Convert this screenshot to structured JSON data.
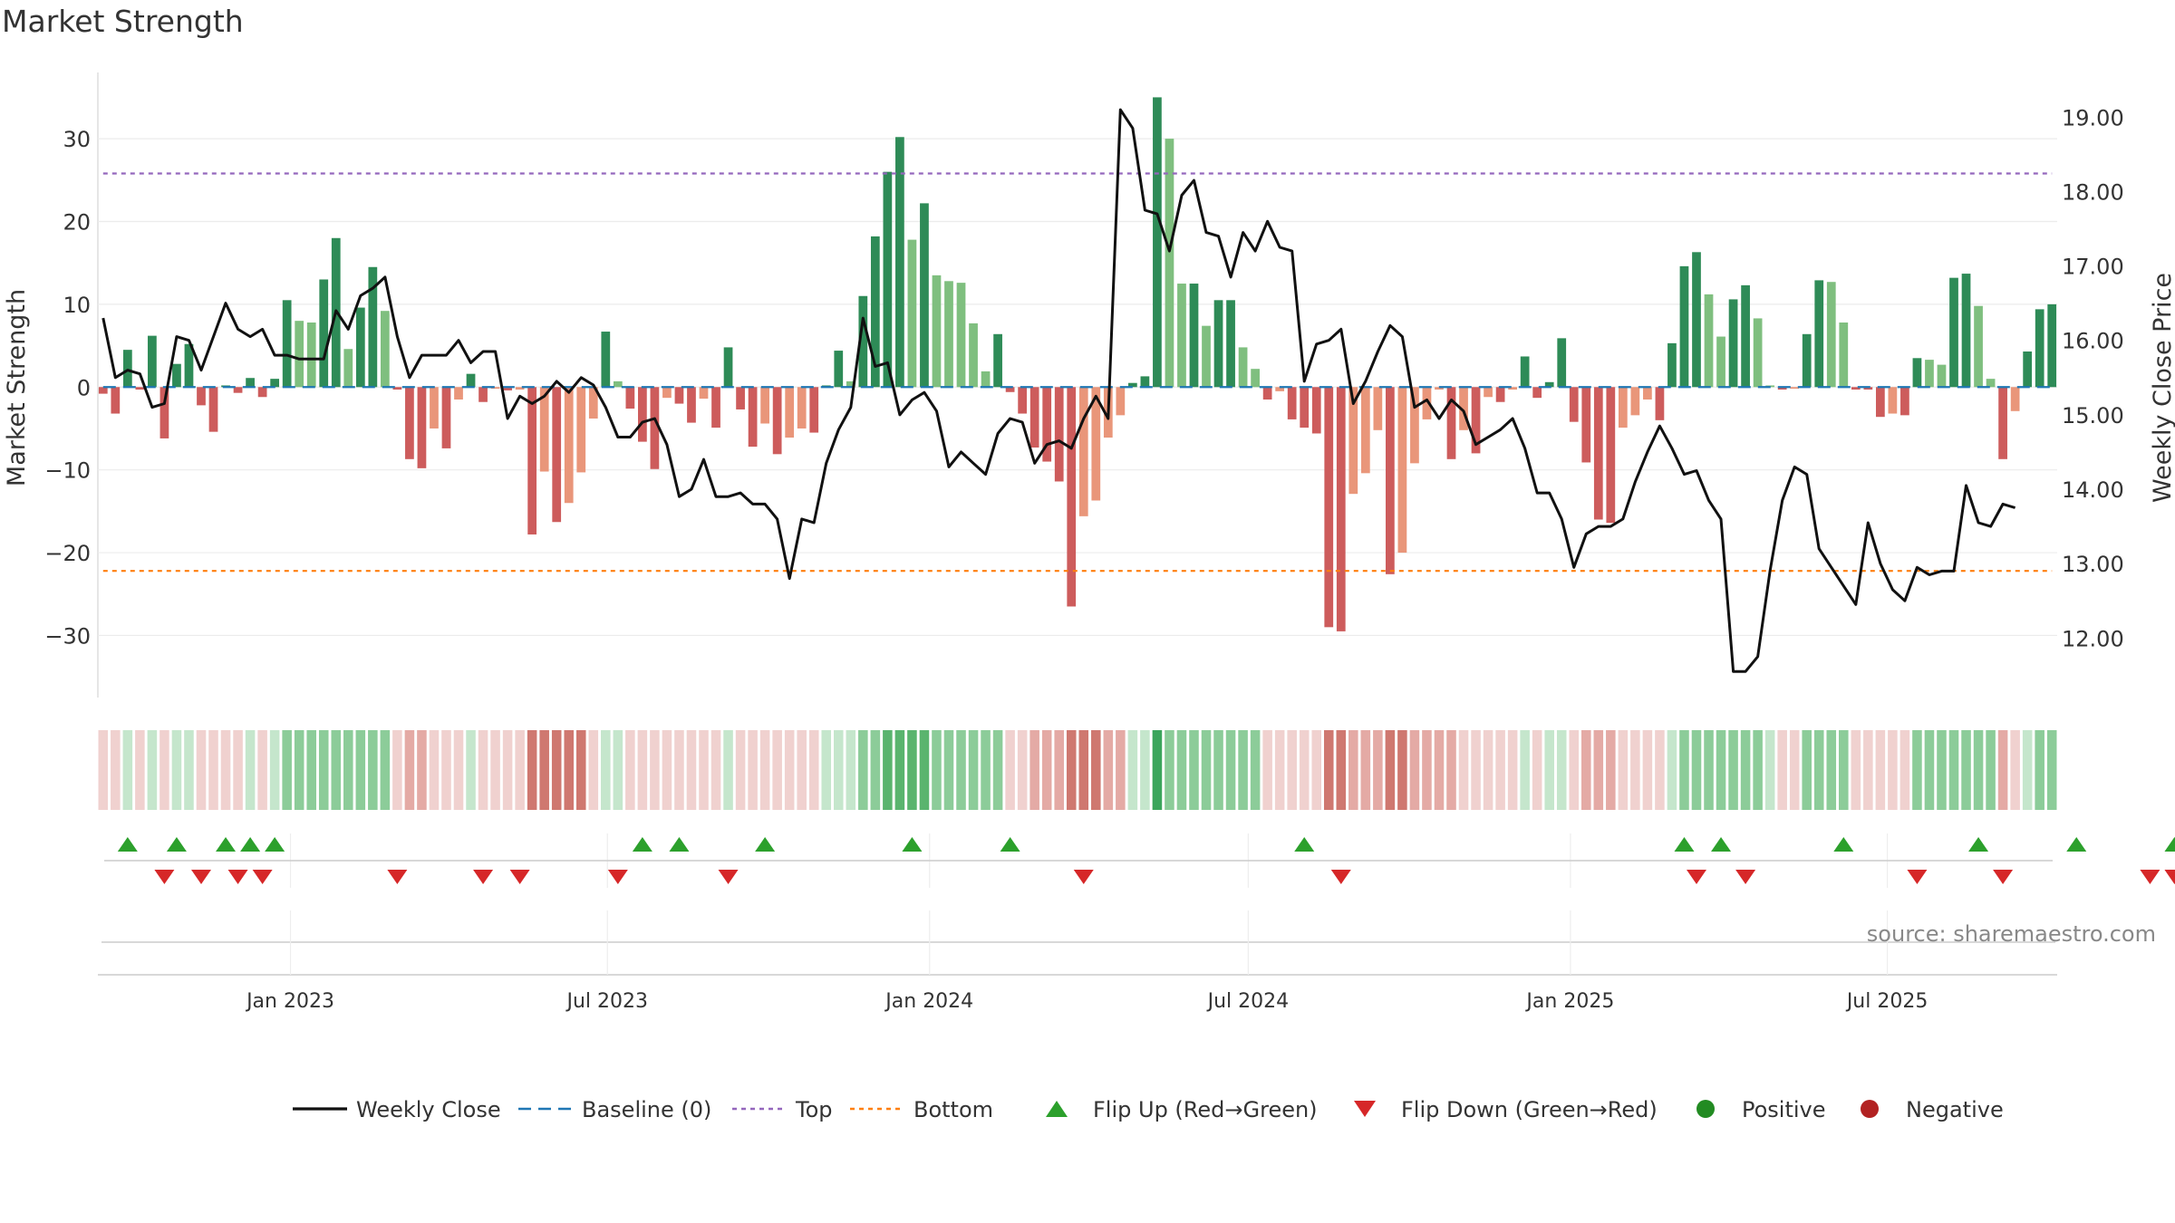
{
  "page": {
    "title": "Market Strength"
  },
  "chart_data": {
    "type": "bar",
    "title": "Market Strength",
    "ylabel": "Market Strength",
    "ylabel_right": "Weekly Close Price",
    "ylim": [
      -37.5,
      38
    ],
    "ylim_right": [
      11.2,
      19.6
    ],
    "y_ticks": [
      30,
      20,
      10,
      0,
      -10,
      -20,
      -30
    ],
    "y_tick_labels": [
      "30",
      "20",
      "10",
      "0",
      "−10",
      "−20",
      "−30"
    ],
    "y_right_ticks": [
      19.0,
      18.0,
      17.0,
      16.0,
      15.0,
      14.0,
      13.0,
      12.0
    ],
    "y_right_tick_labels": [
      "19.00",
      "18.00",
      "17.00",
      "16.00",
      "15.00",
      "14.00",
      "13.00",
      "12.00"
    ],
    "x_start": "2022-09-16",
    "x_step_days": 7,
    "x_ticks": [
      "2023-01-01",
      "2023-07-01",
      "2024-01-01",
      "2024-07-01",
      "2025-01-01",
      "2025-07-01"
    ],
    "x_tick_labels": [
      "Jan 2023",
      "Jul 2023",
      "Jan 2024",
      "Jul 2024",
      "Jan 2025",
      "Jul 2025"
    ],
    "top_line": 25.8,
    "bottom_line": -22.2,
    "strength": [
      -0.8,
      -3.2,
      4.5,
      -0.3,
      6.2,
      -6.2,
      2.8,
      5.2,
      -2.2,
      -5.4,
      0.2,
      -0.7,
      1.1,
      -1.2,
      1,
      10.5,
      8,
      7.8,
      13,
      18,
      4.6,
      9.6,
      14.5,
      9.2,
      -0.3,
      -8.7,
      -9.8,
      -5,
      -7.4,
      -1.5,
      1.6,
      -1.8,
      -0.2,
      -0.4,
      -0.3,
      -17.8,
      -10.2,
      -16.3,
      -14,
      -10.3,
      -3.8,
      6.7,
      0.7,
      -2.6,
      -6.6,
      -9.9,
      -1.3,
      -2,
      -4.3,
      -1.4,
      -4.9,
      4.8,
      -2.7,
      -7.2,
      -4.4,
      -8.1,
      -6.1,
      -5,
      -5.5,
      0.2,
      4.4,
      0.7,
      11,
      18.2,
      26,
      30.2,
      17.8,
      22.2,
      13.5,
      12.8,
      12.6,
      7.7,
      1.9,
      6.4,
      -0.6,
      -3.2,
      -7.3,
      -9,
      -11.4,
      -26.5,
      -15.6,
      -13.7,
      -6.1,
      -3.4,
      0.5,
      1.3,
      35,
      30,
      12.5,
      12.5,
      7.4,
      10.5,
      10.5,
      4.8,
      2.2,
      -1.5,
      -0.5,
      -3.9,
      -4.9,
      -5.6,
      -29,
      -29.5,
      -12.9,
      -10.4,
      -5.2,
      -22.6,
      -20,
      -9.2,
      -3.9,
      -0.3,
      -8.7,
      -5.2,
      -8,
      -1.2,
      -1.8,
      -0.3,
      3.7,
      -1.3,
      0.6,
      5.9,
      -4.2,
      -9.1,
      -16,
      -16.4,
      -4.9,
      -3.4,
      -1.5,
      -4,
      5.3,
      14.6,
      16.3,
      11.2,
      6.1,
      10.6,
      12.3,
      8.3,
      0.2,
      -0.3,
      -0.2,
      6.4,
      12.9,
      12.7,
      7.8,
      -0.3,
      -0.3,
      -3.6,
      -3.2,
      -3.4,
      3.5,
      3.3,
      2.7,
      13.2,
      13.7,
      9.8,
      1,
      -8.7,
      -2.9,
      4.3,
      9.4,
      10
    ],
    "close": [
      16.3,
      15.5,
      15.6,
      15.55,
      15.1,
      15.15,
      16.05,
      16,
      15.6,
      16.05,
      16.5,
      16.15,
      16.05,
      16.15,
      15.8,
      15.8,
      15.75,
      15.75,
      15.75,
      16.4,
      16.15,
      16.6,
      16.7,
      16.85,
      16.05,
      15.5,
      15.8,
      15.8,
      15.8,
      16,
      15.7,
      15.85,
      15.85,
      14.95,
      15.25,
      15.15,
      15.25,
      15.45,
      15.3,
      15.5,
      15.4,
      15.1,
      14.7,
      14.7,
      14.9,
      14.95,
      14.6,
      13.9,
      14,
      14.4,
      13.9,
      13.9,
      13.95,
      13.8,
      13.8,
      13.6,
      12.8,
      13.6,
      13.55,
      14.35,
      14.8,
      15.1,
      16.3,
      15.65,
      15.7,
      15,
      15.2,
      15.3,
      15.05,
      14.3,
      14.5,
      14.35,
      14.2,
      14.75,
      14.95,
      14.9,
      14.35,
      14.6,
      14.65,
      14.55,
      14.95,
      15.25,
      14.95,
      19.1,
      18.85,
      17.75,
      17.7,
      17.2,
      17.95,
      18.15,
      17.45,
      17.4,
      16.85,
      17.45,
      17.2,
      17.6,
      17.25,
      17.2,
      15.45,
      15.95,
      16,
      16.15,
      15.15,
      15.45,
      15.85,
      16.2,
      16.05,
      15.1,
      15.2,
      14.95,
      15.2,
      15.05,
      14.6,
      14.7,
      14.8,
      14.95,
      14.55,
      13.95,
      13.95,
      13.6,
      12.95,
      13.4,
      13.5,
      13.5,
      13.6,
      14.1,
      14.5,
      14.85,
      14.55,
      14.2,
      14.25,
      13.85,
      13.6,
      11.55,
      11.55,
      11.75,
      12.9,
      13.85,
      14.3,
      14.2,
      13.2,
      12.95,
      12.7,
      12.45,
      13.55,
      13,
      12.65,
      12.5,
      12.95,
      12.85,
      12.9,
      12.9,
      14.05,
      13.55,
      13.5,
      13.8,
      13.75
    ],
    "state_levels": [
      -1,
      -1,
      1,
      -1,
      1,
      -1,
      1,
      1,
      -1,
      -1,
      -1,
      -1,
      1,
      -1,
      1,
      2,
      2,
      2,
      2,
      2,
      2,
      2,
      2,
      2,
      -1,
      -2,
      -2,
      -1,
      -1,
      -1,
      1,
      -1,
      -1,
      -1,
      -1,
      -3,
      -3,
      -3,
      -3,
      -3,
      -1,
      1,
      1,
      -1,
      -1,
      -1,
      -1,
      -1,
      -1,
      -1,
      -1,
      1,
      -1,
      -1,
      -1,
      -1,
      -1,
      -1,
      -1,
      1,
      1,
      1,
      2,
      2,
      3,
      3,
      3,
      3,
      2,
      2,
      2,
      2,
      2,
      2,
      -1,
      -1,
      -2,
      -2,
      -2,
      -3,
      -3,
      -3,
      -2,
      -2,
      1,
      1,
      4,
      2,
      2,
      2,
      2,
      2,
      2,
      2,
      2,
      -1,
      -1,
      -1,
      -1,
      -1,
      -3,
      -3,
      -2,
      -2,
      -2,
      -3,
      -3,
      -2,
      -2,
      -2,
      -2,
      -1,
      -1,
      -1,
      -1,
      -1,
      1,
      -1,
      1,
      1,
      -1,
      -2,
      -2,
      -2,
      -1,
      -1,
      -1,
      -1,
      1,
      2,
      2,
      2,
      2,
      2,
      2,
      2,
      1,
      -1,
      -1,
      2,
      2,
      2,
      2,
      -1,
      -1,
      -1,
      -1,
      -1,
      2,
      2,
      2,
      2,
      2,
      2,
      2,
      -2,
      -1,
      1,
      2,
      2
    ],
    "flip_up_idx": [
      2,
      6,
      10,
      12,
      14,
      44,
      47,
      54,
      66,
      74,
      98,
      129,
      132,
      142,
      153,
      161,
      169,
      171
    ],
    "flip_down_idx": [
      5,
      8,
      11,
      13,
      24,
      31,
      34,
      42,
      51,
      80,
      101,
      130,
      134,
      148,
      155,
      167,
      169
    ],
    "source_text": "source: sharemaestro.com",
    "legend": [
      "Weekly Close",
      "Baseline (0)",
      "Top",
      "Bottom",
      "Flip Up (Red→Green)",
      "Flip Down (Green→Red)",
      "Positive",
      "Negative"
    ],
    "colors": {
      "strong_pos": "#2e8b57",
      "mild_pos": "#7fbf7f",
      "strong_neg": "#cd5c5c",
      "mild_neg": "#e9967a",
      "line": "#111111",
      "baseline": "#1f77b4",
      "top": "#9467bd",
      "bottom": "#ff7f0e",
      "flip_up": "#2ca02c",
      "flip_down": "#d62728",
      "positive_dot": "#228b22",
      "negative_dot": "#b22222"
    }
  }
}
